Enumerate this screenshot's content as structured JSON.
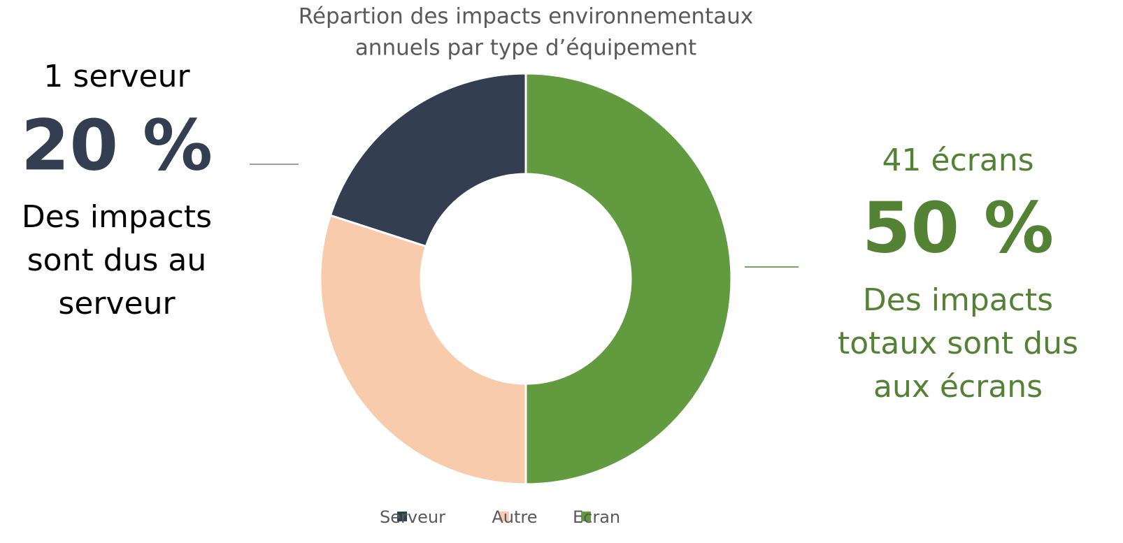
{
  "chart_data": {
    "type": "pie",
    "title": [
      "Répartion des impacts environnementaux",
      "annuels par type d’équipement"
    ],
    "series": [
      {
        "name": "Serveur",
        "color": "#333f50",
        "values": [
          20
        ]
      },
      {
        "name": "Autre",
        "color": "#f8cbad",
        "values": [
          30
        ]
      },
      {
        "name": "Ecran",
        "color": "#629b3f",
        "values": [
          50
        ]
      }
    ],
    "value_labels": [
      "20 %",
      null,
      "50 %"
    ],
    "annotations": [
      {
        "heading": "1 serveur",
        "text": [
          "Des impacts",
          "sont dus au",
          "serveur"
        ],
        "color": "#000000",
        "value_color": "#333f50"
      },
      {
        "heading": "41 écrans",
        "text": [
          "Des impacts",
          "totaux sont dus",
          "aux écrans"
        ],
        "color": "#548235",
        "value_color": "#548235"
      }
    ],
    "legend": "bottom"
  }
}
